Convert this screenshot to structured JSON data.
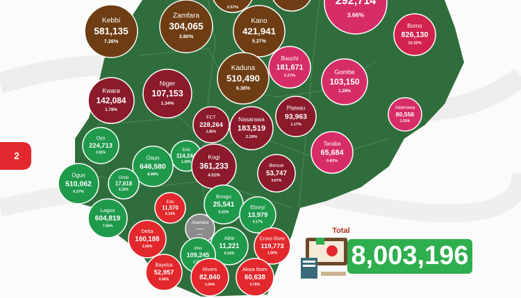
{
  "bubbles": [
    {
      "share": "2.57%",
      "color": "#6e3d14"
    },
    {
      "color": "#6e3d14"
    },
    {
      "value": "292,714",
      "share": "3.66%",
      "color": "#d62d69"
    },
    {
      "name": "Kebbi",
      "value": "581,135",
      "share": "7.26%",
      "color": "#6e3d14"
    },
    {
      "name": "Zamfara",
      "value": "304,065",
      "share": "3.80%",
      "color": "#6e3d14"
    },
    {
      "name": "Kano",
      "value": "421,941",
      "share": "5.27%",
      "color": "#6e3d14"
    },
    {
      "name": "Borno",
      "value": "826,130",
      "share": "10.32%",
      "color": "#d1234e"
    },
    {
      "name": "Bauchi",
      "value": "181,671",
      "share": "2.27%",
      "color": "#d62d69"
    },
    {
      "name": "Kaduna",
      "value": "510,490",
      "share": "6.38%",
      "color": "#6e3d14"
    },
    {
      "name": "Gombe",
      "value": "103,150",
      "share": "1.29%",
      "color": "#d62d69"
    },
    {
      "name": "Kwara",
      "value": "142,084",
      "share": "1.78%",
      "color": "#8b1a2b"
    },
    {
      "name": "Niger",
      "value": "107,153",
      "share": "1.34%",
      "color": "#8b1a2b"
    },
    {
      "name": "FCT",
      "value": "228,264",
      "share": "2.85%",
      "color": "#8b1a2b"
    },
    {
      "name": "Nasarawa",
      "value": "183,519",
      "share": "2.29%",
      "color": "#8b1a2b"
    },
    {
      "name": "Plateau",
      "value": "93,963",
      "share": "1.17%",
      "color": "#8b1a2b"
    },
    {
      "name": "Adamawa",
      "value": "80,556",
      "share": "1.01%",
      "color": "#d62d69"
    },
    {
      "name": "Oyo",
      "value": "224,713",
      "share": "2.81%",
      "color": "#1f9a4b"
    },
    {
      "name": "Ekiti",
      "value": "114,244",
      "share": "1.43%",
      "color": "#1f9a4b"
    },
    {
      "name": "Osun",
      "value": "646,580",
      "share": "8.08%",
      "color": "#1f9a4b"
    },
    {
      "name": "Kogi",
      "value": "361,233",
      "share": "4.51%",
      "color": "#8b1a2b"
    },
    {
      "name": "Benue",
      "value": "53,747",
      "share": "0.67%",
      "color": "#8b1a2b"
    },
    {
      "name": "Taraba",
      "value": "65,684",
      "share": "0.82%",
      "color": "#d62d69"
    },
    {
      "name": "Ogun",
      "value": "510,062",
      "share": "6.37%",
      "color": "#1f9a4b"
    },
    {
      "name": "Ondo",
      "value": "17,618",
      "share": "0.22%",
      "color": "#1f9a4b"
    },
    {
      "name": "Edo",
      "value": "11,570",
      "share": "0.14%",
      "color": "#e2282d"
    },
    {
      "name": "Enugu",
      "value": "25,541",
      "share": "0.32%",
      "color": "#1f9a4b"
    },
    {
      "name": "Lagos",
      "value": "604,819",
      "share": "7.56%",
      "color": "#1f9a4b"
    },
    {
      "name": "Ebonyi",
      "value": "13,979",
      "share": "0.17%",
      "color": "#1f9a4b"
    },
    {
      "name": "Anambra",
      "value": "-----",
      "share": "-----",
      "color": "#8c8c8c"
    },
    {
      "name": "Delta",
      "value": "160,188",
      "share": "2.00%",
      "color": "#e2282d"
    },
    {
      "name": "Abia",
      "value": "11,221",
      "share": "0.14%",
      "color": "#1f9a4b"
    },
    {
      "name": "Imo",
      "value": "109,245",
      "share": "1.37%",
      "color": "#1f9a4b"
    },
    {
      "name": "Cross River",
      "value": "119,773",
      "share": "1.50%",
      "color": "#e2282d"
    },
    {
      "name": "Bayelsa",
      "value": "52,957",
      "share": "0.66%",
      "color": "#e2282d"
    },
    {
      "name": "Akwa Ibom",
      "value": "60,638",
      "share": "0.76%",
      "color": "#e2282d"
    },
    {
      "name": "Rivers",
      "value": "82,840",
      "share": "1.04%",
      "color": "#e2282d"
    }
  ],
  "page_tab": "2",
  "total": {
    "label": "Total",
    "value": "8,003,196"
  }
}
